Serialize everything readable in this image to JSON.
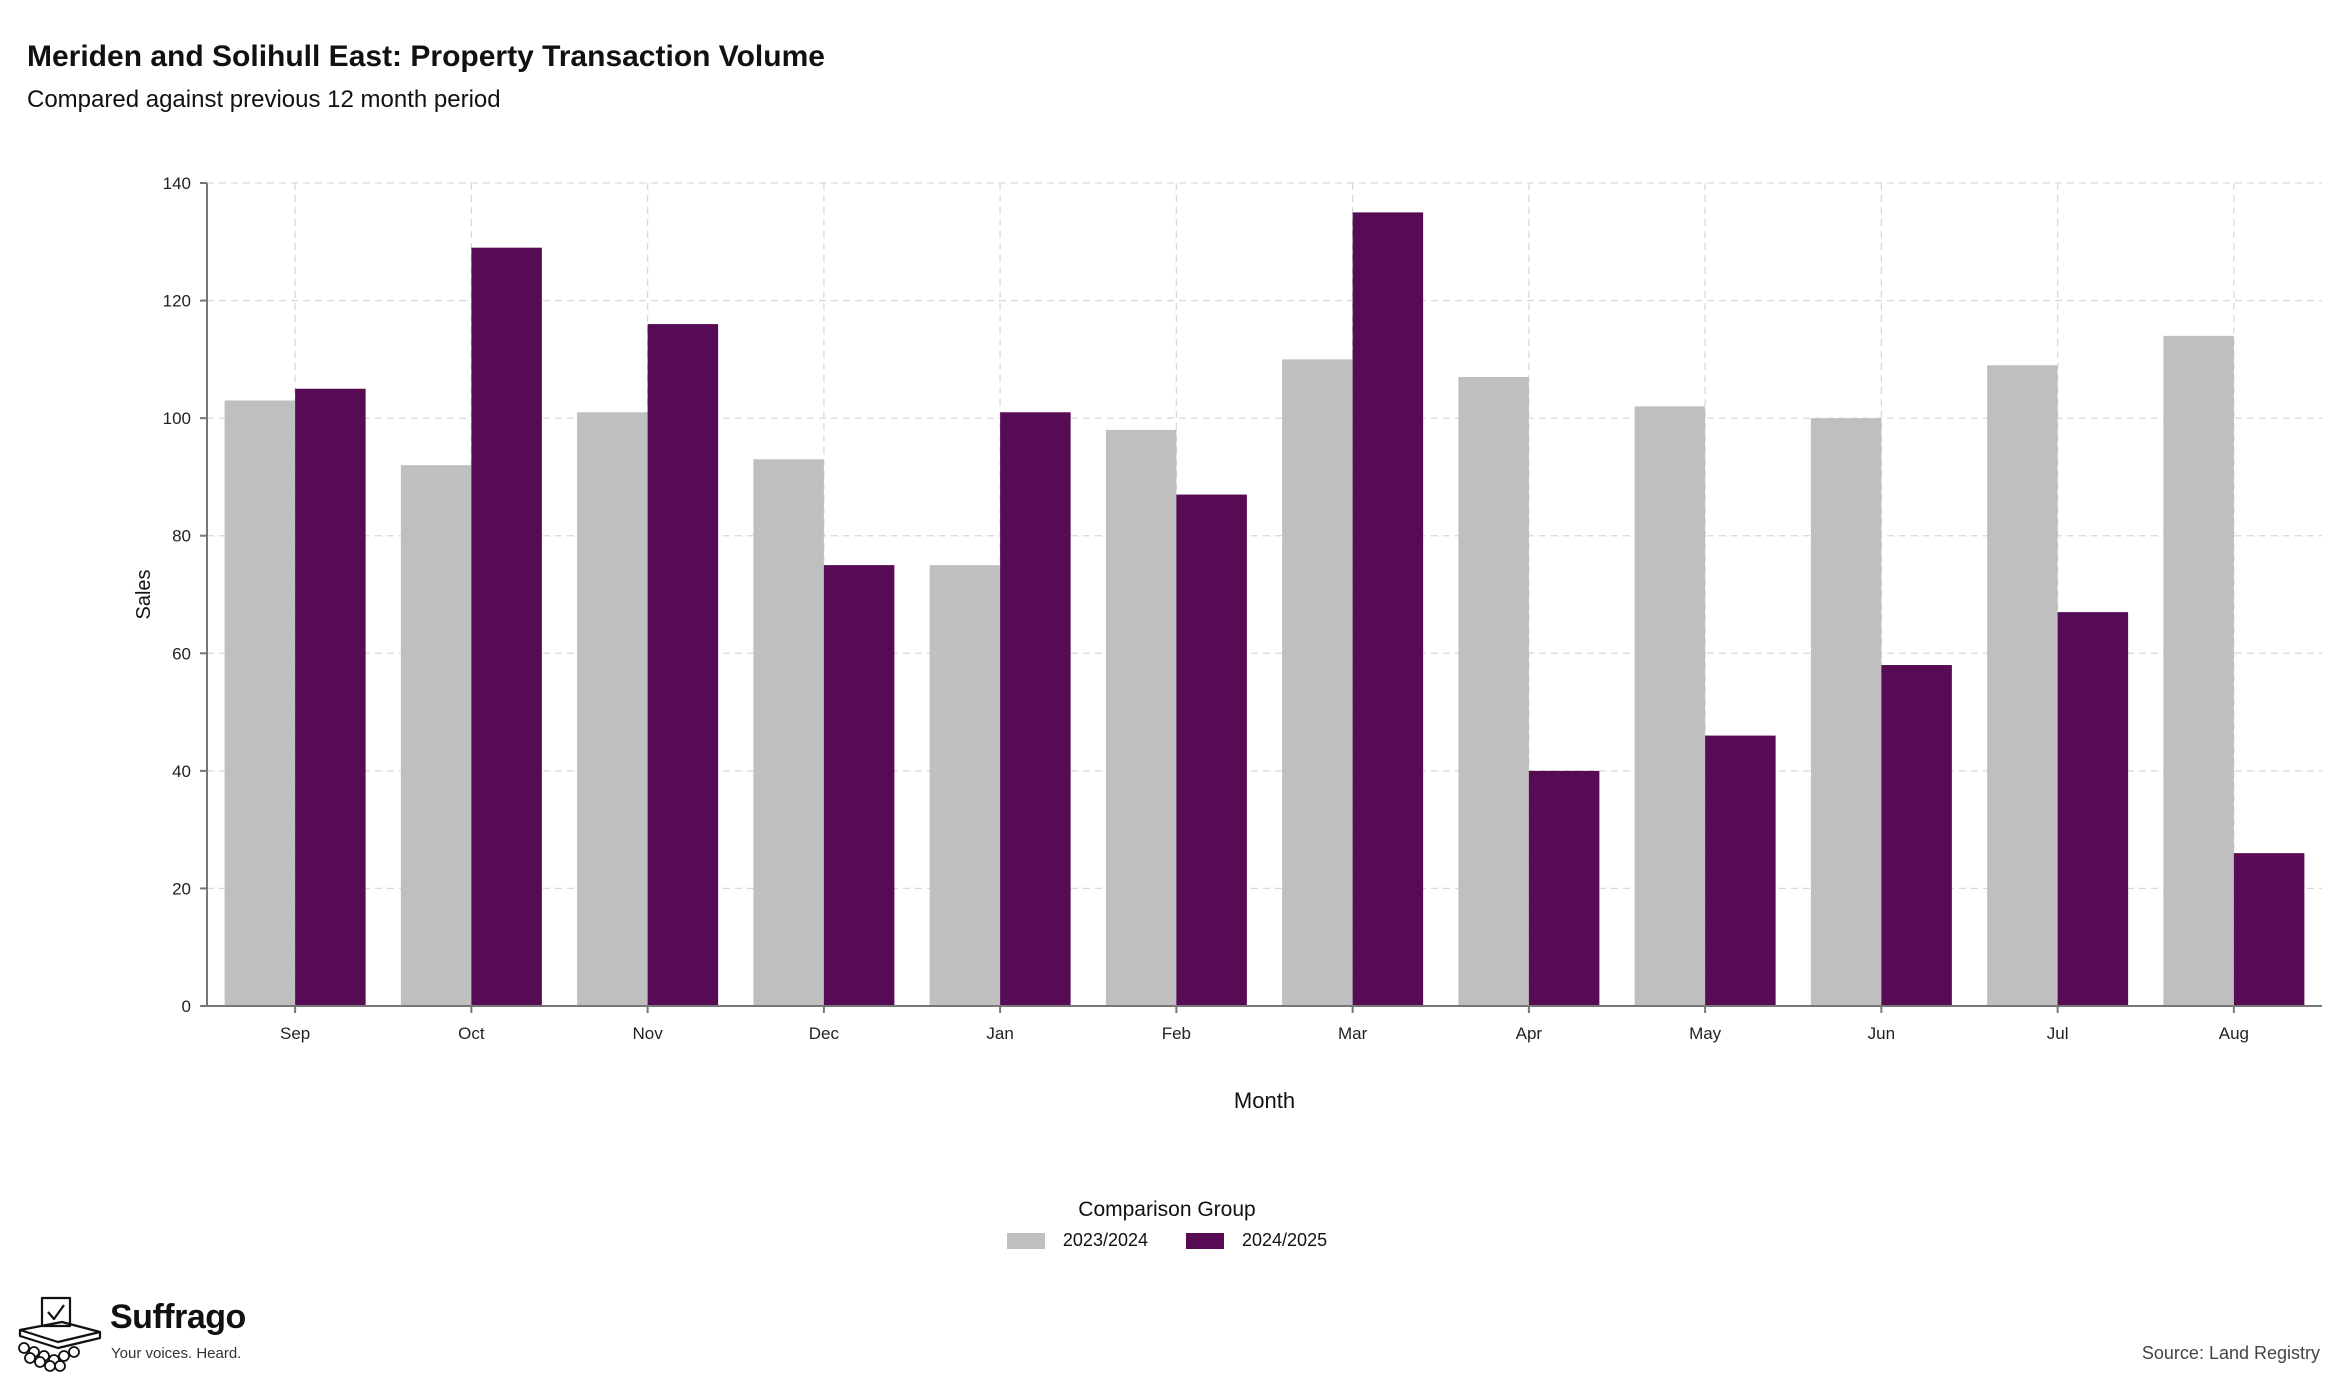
{
  "title": "Meriden and Solihull East: Property Transaction Volume",
  "subtitle": "Compared against previous 12 month period",
  "source": "Source: Land Registry",
  "brand": {
    "name": "Suffrago",
    "tagline": "Your voices. Heard.",
    "icon": "ballot-box-icon"
  },
  "legend": {
    "title": "Comparison Group",
    "position": "bottom-center"
  },
  "colors": {
    "series_2023_2024": "#bfbfbf",
    "series_2024_2025": "#560b54",
    "grid": "#d9d9d9"
  },
  "chart_data": {
    "type": "bar",
    "xlabel": "Month",
    "ylabel": "Sales",
    "ylim": [
      0,
      140
    ],
    "yticks": [
      0,
      20,
      40,
      60,
      80,
      100,
      120,
      140
    ],
    "grid": true,
    "categories": [
      "Sep",
      "Oct",
      "Nov",
      "Dec",
      "Jan",
      "Feb",
      "Mar",
      "Apr",
      "May",
      "Jun",
      "Jul",
      "Aug"
    ],
    "series": [
      {
        "name": "2023/2024",
        "color": "#bfbfbf",
        "values": [
          103,
          92,
          101,
          93,
          75,
          98,
          110,
          107,
          102,
          100,
          109,
          114
        ]
      },
      {
        "name": "2024/2025",
        "color": "#560b54",
        "values": [
          105,
          129,
          116,
          75,
          101,
          87,
          135,
          40,
          46,
          58,
          67,
          26
        ]
      }
    ]
  }
}
